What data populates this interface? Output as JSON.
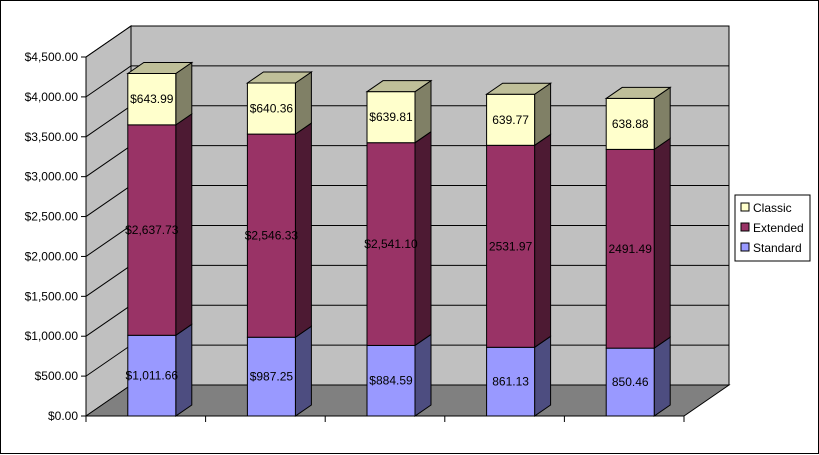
{
  "chart_data": {
    "type": "bar",
    "stacked": true,
    "three_d": true,
    "categories": [
      "",
      "",
      "",
      "",
      ""
    ],
    "series": [
      {
        "name": "Standard",
        "values": [
          1011.66,
          987.25,
          884.59,
          861.13,
          850.46
        ],
        "labels": [
          "$1,011.66",
          "$987.25",
          "$884.59",
          "861.13",
          "850.46"
        ]
      },
      {
        "name": "Extended",
        "values": [
          2637.73,
          2546.33,
          2541.1,
          2531.97,
          2491.49
        ],
        "labels": [
          "$2,637.73",
          "$2,546.33",
          "$2,541.10",
          "2531.97",
          "2491.49"
        ]
      },
      {
        "name": "Classic",
        "values": [
          643.99,
          640.36,
          639.81,
          639.77,
          638.88
        ],
        "labels": [
          "$643.99",
          "$640.36",
          "$639.81",
          "639.77",
          "638.88"
        ]
      }
    ],
    "y_ticks": [
      "$0.00",
      "$500.00",
      "$1,000.00",
      "$1,500.00",
      "$2,000.00",
      "$2,500.00",
      "$3,000.00",
      "$3,500.00",
      "$4,000.00",
      "$4,500.00"
    ],
    "ylim": [
      0,
      4500
    ],
    "grid": true,
    "legend_position": "right",
    "legend_order": [
      "Classic",
      "Extended",
      "Standard"
    ],
    "colors": {
      "Standard": "#9999ff",
      "Extended": "#993366",
      "Classic": "#ffffcc",
      "wall": "#c0c0c0",
      "floor": "#808080"
    }
  }
}
